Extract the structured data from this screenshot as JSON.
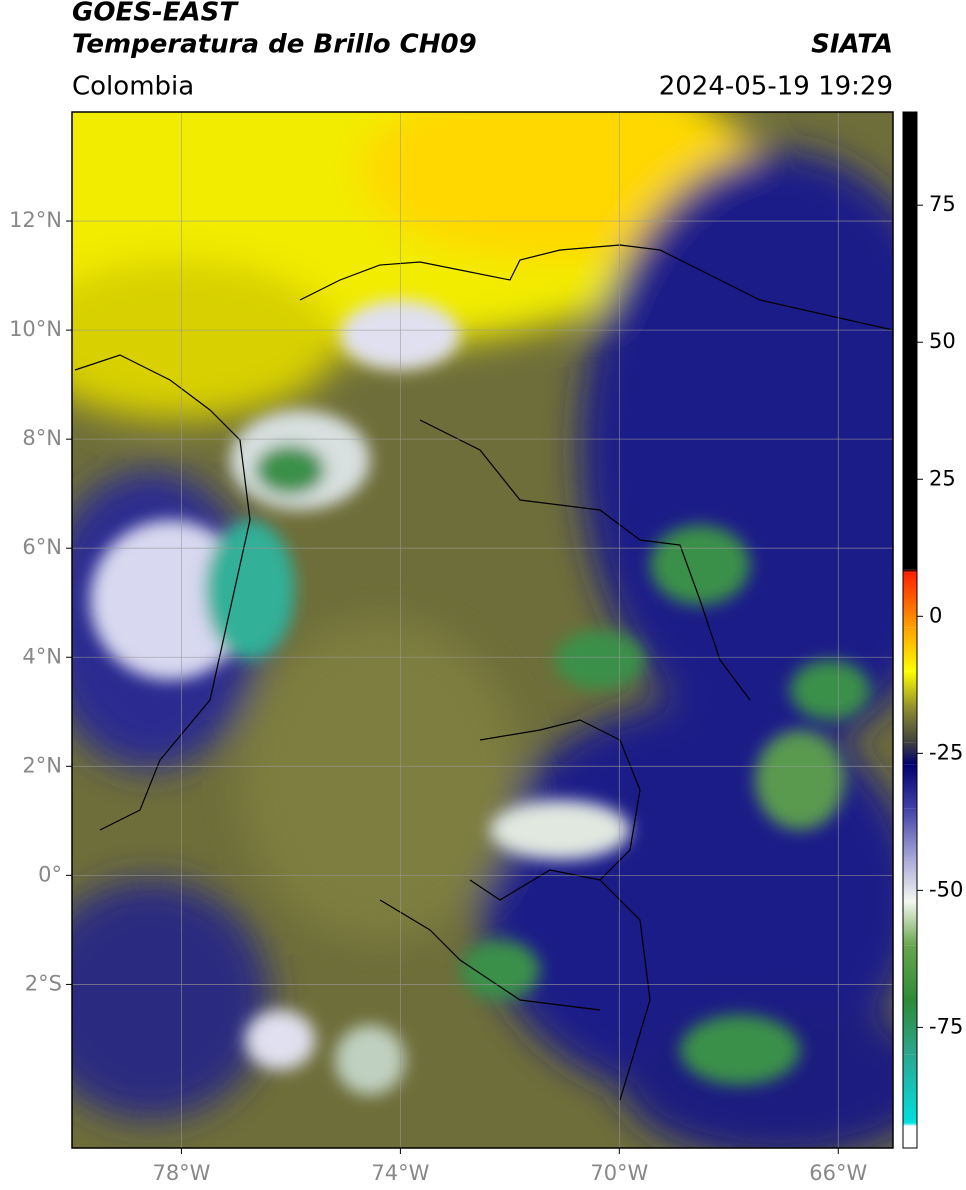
{
  "header": {
    "title": "GOES-EAST",
    "subtitle": "Temperatura de Brillo CH09",
    "source": "SIATA",
    "region": "Colombia",
    "datetime": "2024-05-19 19:29"
  },
  "map": {
    "xlim": [
      -80,
      -65
    ],
    "ylim": [
      -5,
      14
    ],
    "xticks": [
      {
        "value": -78,
        "label": "78°W"
      },
      {
        "value": -74,
        "label": "74°W"
      },
      {
        "value": -70,
        "label": "70°W"
      },
      {
        "value": -66,
        "label": "66°W"
      }
    ],
    "yticks": [
      {
        "value": 12,
        "label": "12°N"
      },
      {
        "value": 10,
        "label": "10°N"
      },
      {
        "value": 8,
        "label": "8°N"
      },
      {
        "value": 6,
        "label": "6°N"
      },
      {
        "value": 4,
        "label": "4°N"
      },
      {
        "value": 2,
        "label": "2°N"
      },
      {
        "value": 0,
        "label": "0°"
      },
      {
        "value": -2,
        "label": "2°S"
      }
    ],
    "grid": true
  },
  "colorbar": {
    "lim": [
      -97,
      92
    ],
    "ticks": [
      75,
      50,
      25,
      0,
      -25,
      -50,
      -75
    ],
    "colormap": [
      {
        "value": -97,
        "color": "#ffffff"
      },
      {
        "value": -93,
        "color": "#ffffff"
      },
      {
        "value": -92.5,
        "color": "#00e0e0"
      },
      {
        "value": -80,
        "color": "#2aa890"
      },
      {
        "value": -70,
        "color": "#2e8a38"
      },
      {
        "value": -60,
        "color": "#6aa650"
      },
      {
        "value": -52,
        "color": "#f4f8f0"
      },
      {
        "value": -45,
        "color": "#b0b0dc"
      },
      {
        "value": -35,
        "color": "#4040a8"
      },
      {
        "value": -27,
        "color": "#000070"
      },
      {
        "value": -23,
        "color": "#404040"
      },
      {
        "value": -17,
        "color": "#8a8a30"
      },
      {
        "value": -10,
        "color": "#ffff00"
      },
      {
        "value": -2,
        "color": "#ffa000"
      },
      {
        "value": 8,
        "color": "#ff2000"
      },
      {
        "value": 8.5,
        "color": "#000000"
      },
      {
        "value": 92,
        "color": "#000000"
      }
    ]
  }
}
